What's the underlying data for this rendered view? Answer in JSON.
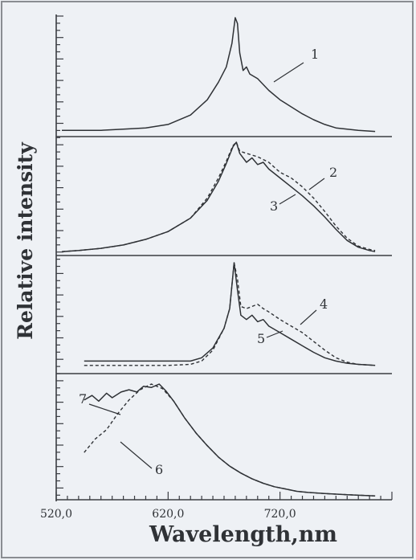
{
  "chart_data": {
    "type": "line",
    "xlabel": "Wavelength,nm",
    "ylabel": "Relative intensity",
    "xlim": [
      520,
      820
    ],
    "x_ticks": [
      {
        "value": 520,
        "label": "520,0"
      },
      {
        "value": 620,
        "label": "620,0"
      },
      {
        "value": 720,
        "label": "720,0"
      }
    ],
    "panels": [
      {
        "series": [
          {
            "name": "1",
            "style": "solid",
            "points": [
              [
                525,
                0.04
              ],
              [
                560,
                0.04
              ],
              [
                580,
                0.05
              ],
              [
                600,
                0.06
              ],
              [
                620,
                0.09
              ],
              [
                640,
                0.17
              ],
              [
                655,
                0.3
              ],
              [
                665,
                0.45
              ],
              [
                672,
                0.58
              ],
              [
                677,
                0.78
              ],
              [
                680,
                1.0
              ],
              [
                682,
                0.95
              ],
              [
                684,
                0.7
              ],
              [
                687,
                0.55
              ],
              [
                690,
                0.58
              ],
              [
                693,
                0.52
              ],
              [
                700,
                0.48
              ],
              [
                710,
                0.38
              ],
              [
                720,
                0.3
              ],
              [
                730,
                0.24
              ],
              [
                740,
                0.18
              ],
              [
                750,
                0.13
              ],
              [
                760,
                0.09
              ],
              [
                770,
                0.06
              ],
              [
                780,
                0.05
              ],
              [
                790,
                0.04
              ],
              [
                805,
                0.03
              ]
            ]
          }
        ]
      },
      {
        "series": [
          {
            "name": "2",
            "style": "dashed",
            "points": [
              [
                525,
                0.02
              ],
              [
                540,
                0.03
              ],
              [
                560,
                0.05
              ],
              [
                580,
                0.08
              ],
              [
                600,
                0.13
              ],
              [
                620,
                0.2
              ],
              [
                640,
                0.32
              ],
              [
                655,
                0.5
              ],
              [
                665,
                0.68
              ],
              [
                672,
                0.83
              ],
              [
                678,
                0.97
              ],
              [
                681,
                1.0
              ],
              [
                684,
                0.92
              ],
              [
                690,
                0.9
              ],
              [
                700,
                0.87
              ],
              [
                710,
                0.82
              ],
              [
                720,
                0.73
              ],
              [
                730,
                0.68
              ],
              [
                740,
                0.6
              ],
              [
                750,
                0.5
              ],
              [
                760,
                0.38
              ],
              [
                770,
                0.25
              ],
              [
                780,
                0.14
              ],
              [
                790,
                0.07
              ],
              [
                800,
                0.04
              ],
              [
                805,
                0.03
              ]
            ]
          },
          {
            "name": "3",
            "style": "solid",
            "points": [
              [
                525,
                0.02
              ],
              [
                540,
                0.03
              ],
              [
                560,
                0.05
              ],
              [
                580,
                0.08
              ],
              [
                600,
                0.13
              ],
              [
                620,
                0.2
              ],
              [
                640,
                0.32
              ],
              [
                655,
                0.48
              ],
              [
                665,
                0.65
              ],
              [
                672,
                0.81
              ],
              [
                678,
                0.96
              ],
              [
                681,
                1.0
              ],
              [
                684,
                0.9
              ],
              [
                690,
                0.82
              ],
              [
                695,
                0.86
              ],
              [
                700,
                0.8
              ],
              [
                705,
                0.82
              ],
              [
                710,
                0.76
              ],
              [
                720,
                0.68
              ],
              [
                730,
                0.6
              ],
              [
                740,
                0.52
              ],
              [
                750,
                0.43
              ],
              [
                760,
                0.33
              ],
              [
                770,
                0.22
              ],
              [
                780,
                0.12
              ],
              [
                790,
                0.06
              ],
              [
                800,
                0.03
              ],
              [
                805,
                0.02
              ]
            ]
          }
        ]
      },
      {
        "series": [
          {
            "name": "4",
            "style": "dashed",
            "points": [
              [
                545,
                0.06
              ],
              [
                580,
                0.06
              ],
              [
                620,
                0.06
              ],
              [
                640,
                0.07
              ],
              [
                650,
                0.1
              ],
              [
                660,
                0.2
              ],
              [
                670,
                0.4
              ],
              [
                675,
                0.58
              ],
              [
                679,
                1.0
              ],
              [
                682,
                0.85
              ],
              [
                685,
                0.6
              ],
              [
                690,
                0.58
              ],
              [
                700,
                0.62
              ],
              [
                705,
                0.58
              ],
              [
                710,
                0.55
              ],
              [
                720,
                0.48
              ],
              [
                730,
                0.42
              ],
              [
                740,
                0.36
              ],
              [
                750,
                0.28
              ],
              [
                760,
                0.2
              ],
              [
                770,
                0.13
              ],
              [
                780,
                0.09
              ],
              [
                790,
                0.07
              ],
              [
                805,
                0.06
              ]
            ]
          },
          {
            "name": "5",
            "style": "solid",
            "points": [
              [
                545,
                0.1
              ],
              [
                580,
                0.1
              ],
              [
                620,
                0.1
              ],
              [
                640,
                0.1
              ],
              [
                650,
                0.13
              ],
              [
                660,
                0.22
              ],
              [
                670,
                0.4
              ],
              [
                675,
                0.58
              ],
              [
                679,
                1.0
              ],
              [
                682,
                0.75
              ],
              [
                685,
                0.52
              ],
              [
                690,
                0.48
              ],
              [
                695,
                0.52
              ],
              [
                700,
                0.46
              ],
              [
                705,
                0.48
              ],
              [
                710,
                0.42
              ],
              [
                720,
                0.36
              ],
              [
                730,
                0.3
              ],
              [
                740,
                0.24
              ],
              [
                750,
                0.18
              ],
              [
                760,
                0.13
              ],
              [
                770,
                0.1
              ],
              [
                780,
                0.08
              ],
              [
                790,
                0.07
              ],
              [
                805,
                0.06
              ]
            ]
          }
        ]
      },
      {
        "series": [
          {
            "name": "6",
            "style": "dashed",
            "points": [
              [
                545,
                0.4
              ],
              [
                555,
                0.52
              ],
              [
                565,
                0.6
              ],
              [
                575,
                0.74
              ],
              [
                585,
                0.86
              ],
              [
                595,
                0.95
              ],
              [
                605,
                1.0
              ],
              [
                615,
                0.96
              ],
              [
                625,
                0.85
              ],
              [
                635,
                0.7
              ],
              [
                645,
                0.57
              ],
              [
                655,
                0.46
              ],
              [
                665,
                0.36
              ],
              [
                675,
                0.28
              ],
              [
                685,
                0.22
              ],
              [
                695,
                0.17
              ],
              [
                705,
                0.13
              ],
              [
                715,
                0.1
              ],
              [
                725,
                0.08
              ],
              [
                735,
                0.06
              ],
              [
                745,
                0.05
              ],
              [
                760,
                0.04
              ],
              [
                780,
                0.03
              ],
              [
                805,
                0.02
              ]
            ]
          },
          {
            "name": "7",
            "style": "solid",
            "points": [
              [
                545,
                0.86
              ],
              [
                552,
                0.9
              ],
              [
                558,
                0.85
              ],
              [
                565,
                0.92
              ],
              [
                570,
                0.88
              ],
              [
                578,
                0.93
              ],
              [
                585,
                0.95
              ],
              [
                592,
                0.93
              ],
              [
                598,
                0.98
              ],
              [
                605,
                0.97
              ],
              [
                612,
                1.0
              ],
              [
                618,
                0.94
              ],
              [
                625,
                0.85
              ],
              [
                635,
                0.7
              ],
              [
                645,
                0.57
              ],
              [
                655,
                0.46
              ],
              [
                665,
                0.36
              ],
              [
                675,
                0.28
              ],
              [
                685,
                0.22
              ],
              [
                695,
                0.17
              ],
              [
                705,
                0.13
              ],
              [
                715,
                0.1
              ],
              [
                725,
                0.08
              ],
              [
                735,
                0.06
              ],
              [
                745,
                0.05
              ],
              [
                760,
                0.04
              ],
              [
                780,
                0.03
              ],
              [
                805,
                0.02
              ]
            ]
          }
        ]
      }
    ]
  }
}
